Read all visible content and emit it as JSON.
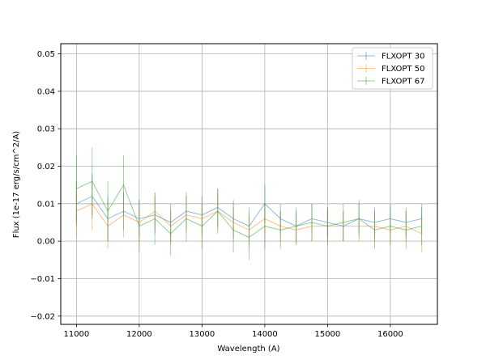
{
  "chart_data": {
    "type": "line",
    "title": "",
    "xlabel": "Wavelength (A)",
    "ylabel": "Flux (1e-17 erg/s/cm^2/A)",
    "xlim": [
      10750,
      16750
    ],
    "ylim": [
      -0.0222,
      0.0527
    ],
    "xticks": [
      11000,
      12000,
      13000,
      14000,
      15000,
      16000
    ],
    "yticks": [
      -0.02,
      -0.01,
      0.0,
      0.01,
      0.02,
      0.03,
      0.04,
      0.05
    ],
    "xtick_labels": [
      "11000",
      "12000",
      "13000",
      "14000",
      "15000",
      "16000"
    ],
    "ytick_labels": [
      "−0.02",
      "−0.01",
      "0.00",
      "0.01",
      "0.02",
      "0.03",
      "0.04",
      "0.05"
    ],
    "grid": true,
    "legend_position": "top-right",
    "error_bars": true,
    "series": [
      {
        "name": "FLXOPT 30",
        "color": "#1f77b4",
        "x": [
          11000,
          11250,
          11500,
          11750,
          12000,
          12250,
          12500,
          12750,
          13000,
          13250,
          13500,
          13750,
          14000,
          14250,
          14500,
          14750,
          15000,
          15250,
          15500,
          15750,
          16000,
          16250,
          16500
        ],
        "y": [
          0.01,
          0.012,
          0.006,
          0.008,
          0.006,
          0.007,
          0.005,
          0.008,
          0.007,
          0.009,
          0.006,
          0.004,
          0.01,
          0.006,
          0.004,
          0.006,
          0.005,
          0.004,
          0.006,
          0.005,
          0.006,
          0.005,
          0.006
        ],
        "err": [
          0.006,
          0.006,
          0.006,
          0.005,
          0.005,
          0.005,
          0.005,
          0.005,
          0.005,
          0.005,
          0.005,
          0.005,
          0.005,
          0.004,
          0.004,
          0.004,
          0.004,
          0.004,
          0.004,
          0.004,
          0.004,
          0.004,
          0.004
        ]
      },
      {
        "name": "FLXOPT 50",
        "color": "#ff7f0e",
        "x": [
          11000,
          11250,
          11500,
          11750,
          12000,
          12250,
          12500,
          12750,
          13000,
          13250,
          13500,
          13750,
          14000,
          14250,
          14500,
          14750,
          15000,
          15250,
          15500,
          15750,
          16000,
          16250,
          16500
        ],
        "y": [
          0.008,
          0.01,
          0.004,
          0.007,
          0.005,
          0.008,
          0.004,
          0.007,
          0.006,
          0.008,
          0.005,
          0.003,
          0.006,
          0.004,
          0.003,
          0.004,
          0.004,
          0.004,
          0.004,
          0.004,
          0.003,
          0.004,
          0.002
        ],
        "err": [
          0.007,
          0.007,
          0.006,
          0.006,
          0.005,
          0.005,
          0.005,
          0.005,
          0.005,
          0.005,
          0.005,
          0.005,
          0.004,
          0.004,
          0.004,
          0.004,
          0.004,
          0.004,
          0.004,
          0.004,
          0.004,
          0.004,
          0.005
        ]
      },
      {
        "name": "FLXOPT 67",
        "color": "#2ca02c",
        "x": [
          11000,
          11250,
          11500,
          11750,
          12000,
          12250,
          12500,
          12750,
          13000,
          13250,
          13500,
          13750,
          14000,
          14250,
          14500,
          14750,
          15000,
          15250,
          15500,
          15750,
          16000,
          16250,
          16500
        ],
        "y": [
          0.014,
          0.016,
          0.008,
          0.015,
          0.004,
          0.006,
          0.002,
          0.006,
          0.004,
          0.008,
          0.003,
          0.001,
          0.004,
          0.003,
          0.004,
          0.005,
          0.004,
          0.005,
          0.006,
          0.003,
          0.004,
          0.003,
          0.004
        ],
        "err": [
          0.009,
          0.009,
          0.008,
          0.008,
          0.007,
          0.007,
          0.006,
          0.006,
          0.006,
          0.006,
          0.006,
          0.006,
          0.006,
          0.005,
          0.005,
          0.005,
          0.005,
          0.005,
          0.005,
          0.005,
          0.005,
          0.005,
          0.005
        ]
      }
    ]
  }
}
